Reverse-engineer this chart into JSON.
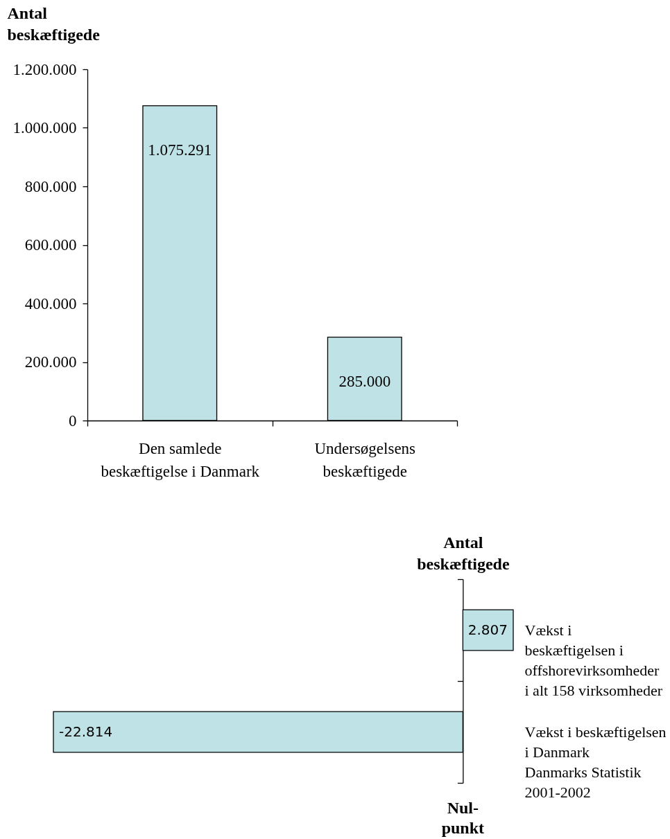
{
  "chart_data": [
    {
      "type": "bar",
      "ylabel": "Antal\nbeskæftigede",
      "categories": [
        "Den samlede\nbeskæftigelse i Danmark",
        "Undersøgelsens\nbeskæftigede"
      ],
      "series": [
        {
          "color": "#bee2e5",
          "values": [
            1075291,
            285000
          ],
          "value_labels": [
            "1.075.291",
            "285.000"
          ]
        }
      ],
      "ylim": [
        0,
        1200000
      ],
      "yticks": [
        0,
        {
          "value": 200000,
          "label": "200.000"
        },
        {
          "value": 400000,
          "label": "400.000"
        },
        {
          "value": 600000,
          "label": "600.000"
        },
        {
          "value": 800000,
          "label": "800.000"
        },
        {
          "value": 1000000,
          "label": "1.000.000"
        },
        {
          "value": 1200000,
          "label": "1.200.000"
        }
      ]
    },
    {
      "type": "bar",
      "orientation": "horizontal",
      "xlabel": "Antal\nbeskæftigede",
      "categories": [
        "Vækst i\nbeskæftigelsen i\noffshorevirksomheder\ni alt 158 virksomheder",
        "Vækst i beskæftigelsen\ni Danmark\nDanmarks Statistik\n2001-2002"
      ],
      "series": [
        {
          "color": "#bee2e5",
          "values": [
            2807,
            -22814
          ],
          "value_labels": [
            "2.807",
            "-22.814"
          ]
        }
      ],
      "annotations": [
        "Nul-\npunkt"
      ]
    }
  ]
}
